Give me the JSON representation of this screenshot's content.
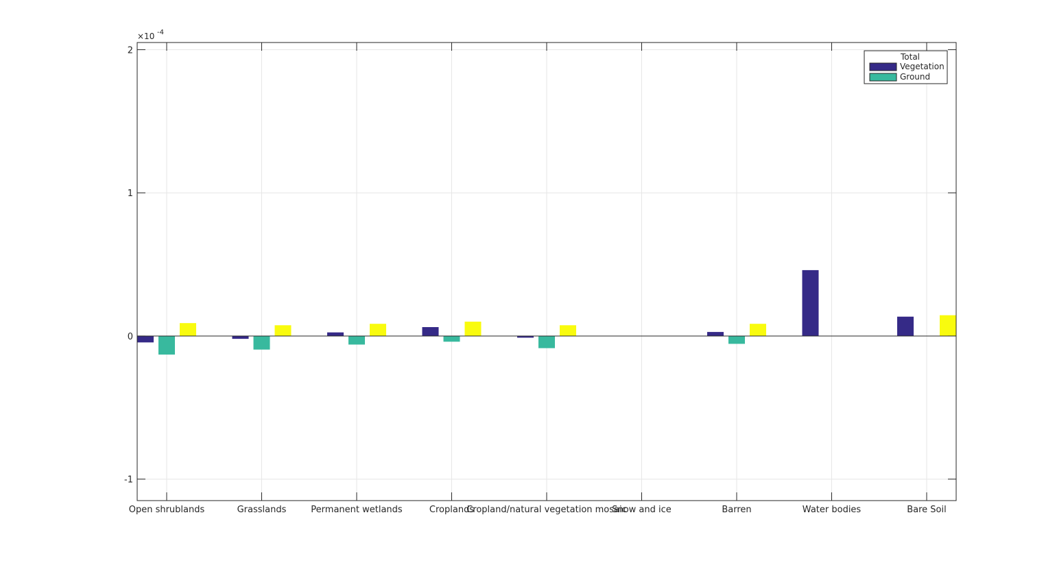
{
  "chart_data": {
    "type": "bar",
    "categories": [
      "Open shrublands",
      "Grasslands",
      "Permanent wetlands",
      "Croplands",
      "Cropland/natural vegetation mosaic",
      "Snow and ice",
      "Barren",
      "Water bodies",
      "Bare Soil"
    ],
    "series": [
      {
        "name": "Vegetation",
        "color": "#352a87",
        "values": [
          -0.045,
          -0.02,
          0.025,
          0.062,
          -0.012,
          0,
          0.028,
          0.46,
          0.135
        ]
      },
      {
        "name": "Ground",
        "color": "#38b99e",
        "values": [
          -0.13,
          -0.095,
          -0.06,
          -0.04,
          -0.085,
          0,
          -0.055,
          0,
          0
        ]
      },
      {
        "name": "",
        "color": "#f9fb0e",
        "values": [
          0.09,
          0.075,
          0.085,
          0.1,
          0.075,
          0,
          0.085,
          0,
          0.145
        ]
      }
    ],
    "ylim": [
      -1.15,
      2.05
    ],
    "yticks": [
      -1,
      0,
      1,
      2
    ],
    "ytick_labels": [
      "-1",
      "0",
      "1",
      "2"
    ],
    "y_exponent_label": "×10",
    "y_exponent_power": "-4",
    "grid": true,
    "legend": {
      "title": "Total",
      "entries": [
        "Vegetation",
        "Ground"
      ],
      "placement": "top-right"
    },
    "axis_color": "#262626",
    "grid_color": "#e6e6e6"
  }
}
